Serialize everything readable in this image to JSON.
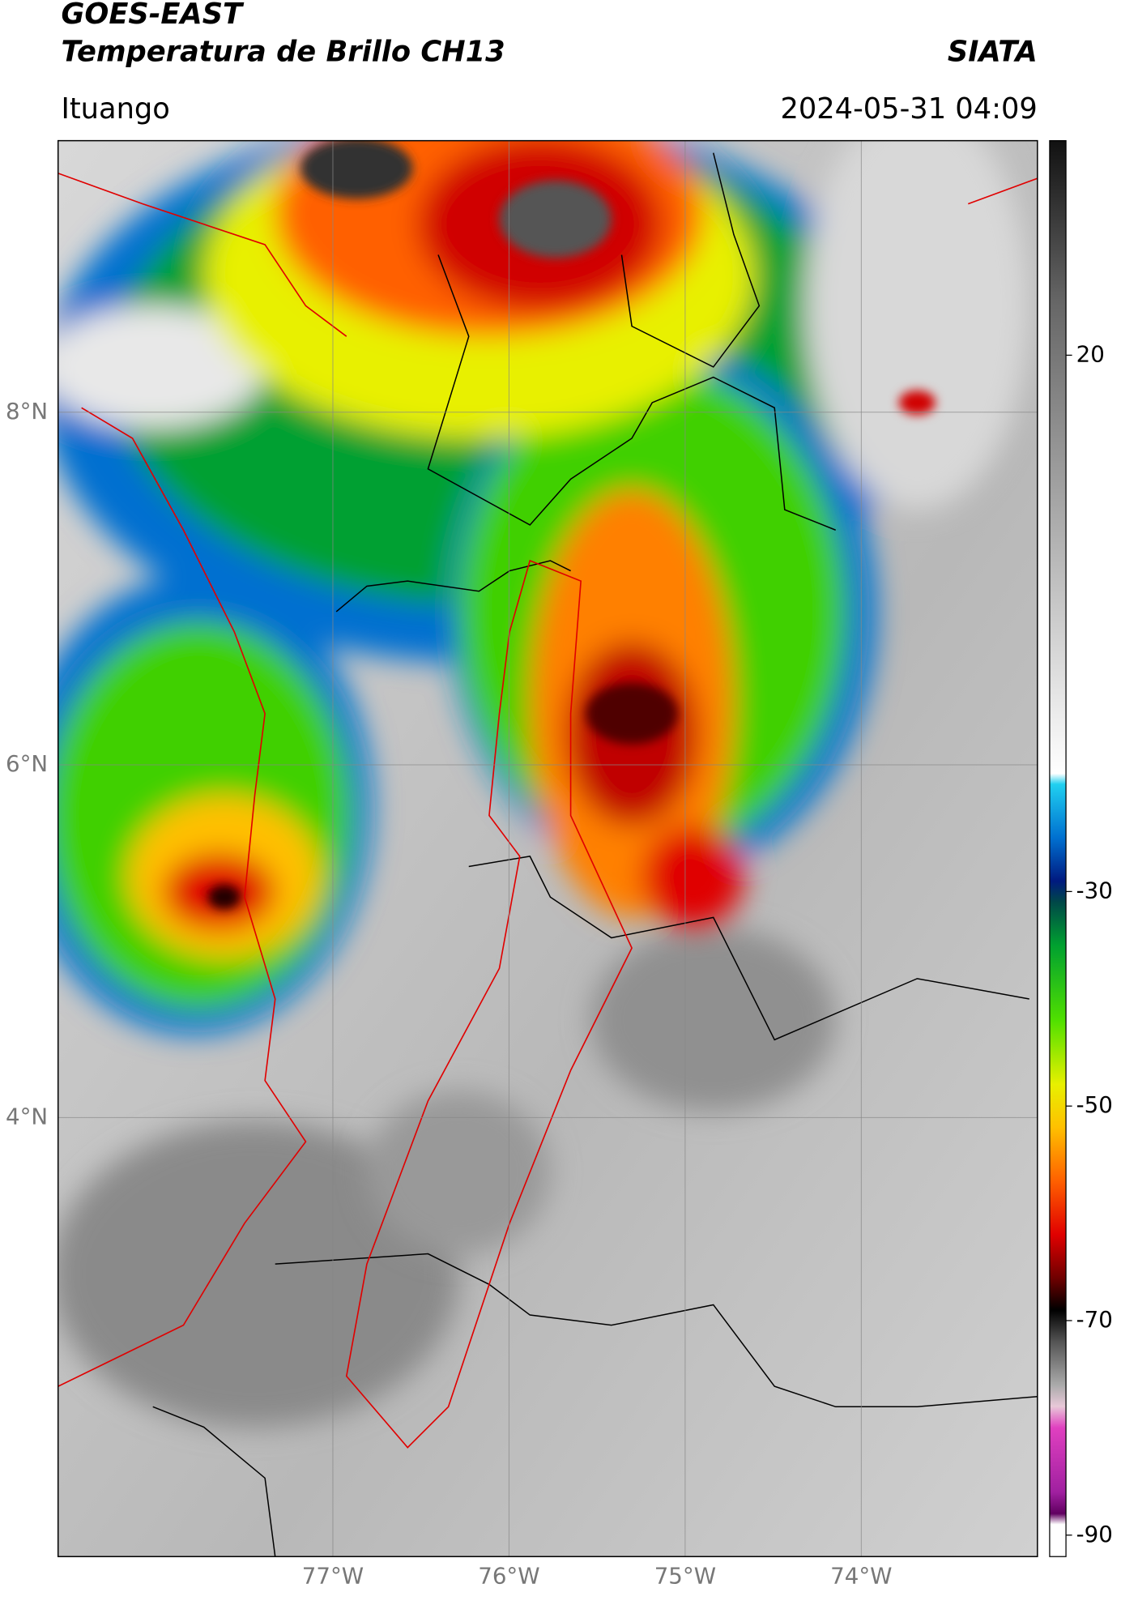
{
  "chart_data": {
    "type": "map",
    "title": "GOES-EAST",
    "subtitle": "Temperatura de Brillo CH13",
    "source": "SIATA",
    "location": "Ituango",
    "timestamp": "2024-05-31 04:09",
    "xlim": [
      -78.56,
      -73.0
    ],
    "ylim": [
      1.51,
      9.54
    ],
    "xticks": [
      {
        "value": -77,
        "label": "77°W"
      },
      {
        "value": -76,
        "label": "76°W"
      },
      {
        "value": -75,
        "label": "75°W"
      },
      {
        "value": -74,
        "label": "74°W"
      }
    ],
    "yticks": [
      {
        "value": 8,
        "label": "8°N"
      },
      {
        "value": 6,
        "label": "6°N"
      },
      {
        "value": 4,
        "label": "4°N"
      }
    ],
    "grid": true,
    "colorbar": {
      "clim": [
        -92,
        40
      ],
      "ticks": [
        20,
        -30,
        -50,
        -70,
        -90
      ],
      "colormap": [
        {
          "value": 40,
          "color": "#111111"
        },
        {
          "value": 25,
          "color": "#666666"
        },
        {
          "value": 5,
          "color": "#aaaaaa"
        },
        {
          "value": -19,
          "color": "#ffffff"
        },
        {
          "value": -20,
          "color": "#20d0f0"
        },
        {
          "value": -25,
          "color": "#0070d0"
        },
        {
          "value": -29,
          "color": "#001a80"
        },
        {
          "value": -31,
          "color": "#004848"
        },
        {
          "value": -35,
          "color": "#00a030"
        },
        {
          "value": -42,
          "color": "#50e000"
        },
        {
          "value": -48,
          "color": "#e8f000"
        },
        {
          "value": -52,
          "color": "#ffc000"
        },
        {
          "value": -57,
          "color": "#ff6000"
        },
        {
          "value": -62,
          "color": "#e00000"
        },
        {
          "value": -66,
          "color": "#700000"
        },
        {
          "value": -69,
          "color": "#000000"
        },
        {
          "value": -72,
          "color": "#555555"
        },
        {
          "value": -76,
          "color": "#aaaaaa"
        },
        {
          "value": -78,
          "color": "#e8c8d8"
        },
        {
          "value": -80,
          "color": "#e040c0"
        },
        {
          "value": -86,
          "color": "#a020a0"
        },
        {
          "value": -88,
          "color": "#600060"
        },
        {
          "value": -89,
          "color": "#ffffff"
        }
      ]
    }
  }
}
